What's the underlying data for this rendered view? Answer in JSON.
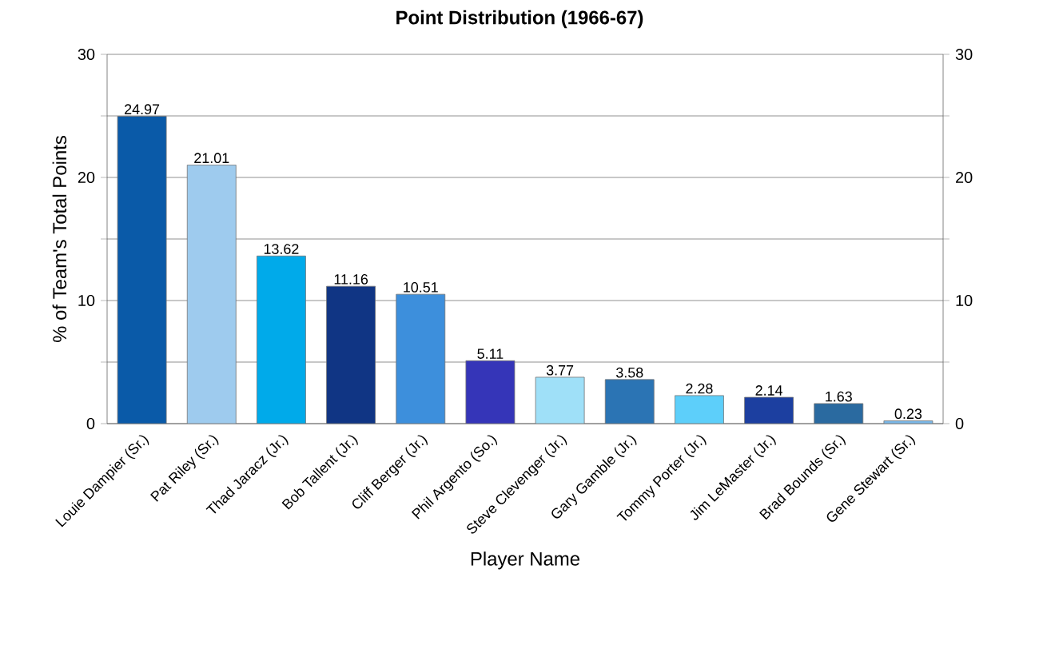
{
  "chart_data": {
    "type": "bar",
    "title": "Point Distribution (1966-67)",
    "xlabel": "Player Name",
    "ylabel": "% of Team's Total Points",
    "categories": [
      "Louie Dampier (Sr.)",
      "Pat Riley (Sr.)",
      "Thad Jaracz (Jr.)",
      "Bob Tallent (Jr.)",
      "Cliff Berger (Jr.)",
      "Phil Argento (So.)",
      "Steve Clevenger (Jr.)",
      "Gary Gamble (Jr.)",
      "Tommy Porter (Jr.)",
      "Jim LeMaster (Jr.)",
      "Brad Bounds (Sr.)",
      "Gene Stewart (Sr.)"
    ],
    "values": [
      24.97,
      21.01,
      13.62,
      11.16,
      10.51,
      5.11,
      3.77,
      3.58,
      2.28,
      2.14,
      1.63,
      0.23
    ],
    "colors": [
      "#0a5aa8",
      "#9ecbee",
      "#00aaea",
      "#103584",
      "#3d8fdc",
      "#3535b8",
      "#9fe0f8",
      "#2b74b4",
      "#5dcffa",
      "#1c3fa0",
      "#2a6aa0",
      "#7ab8e8"
    ],
    "ylim": [
      0,
      30
    ],
    "yticks": [
      0,
      {
        "value": 5,
        "label": null
      },
      10,
      {
        "value": 15,
        "label": null
      },
      20,
      {
        "value": 25,
        "label": null
      },
      30
    ],
    "y2lim": [
      0,
      30
    ],
    "y2ticks": [
      0,
      {
        "value": 5,
        "label": null
      },
      10,
      {
        "value": 15,
        "label": null
      },
      20,
      {
        "value": 25,
        "label": null
      },
      30
    ],
    "grid": "y",
    "data_labels": true
  }
}
